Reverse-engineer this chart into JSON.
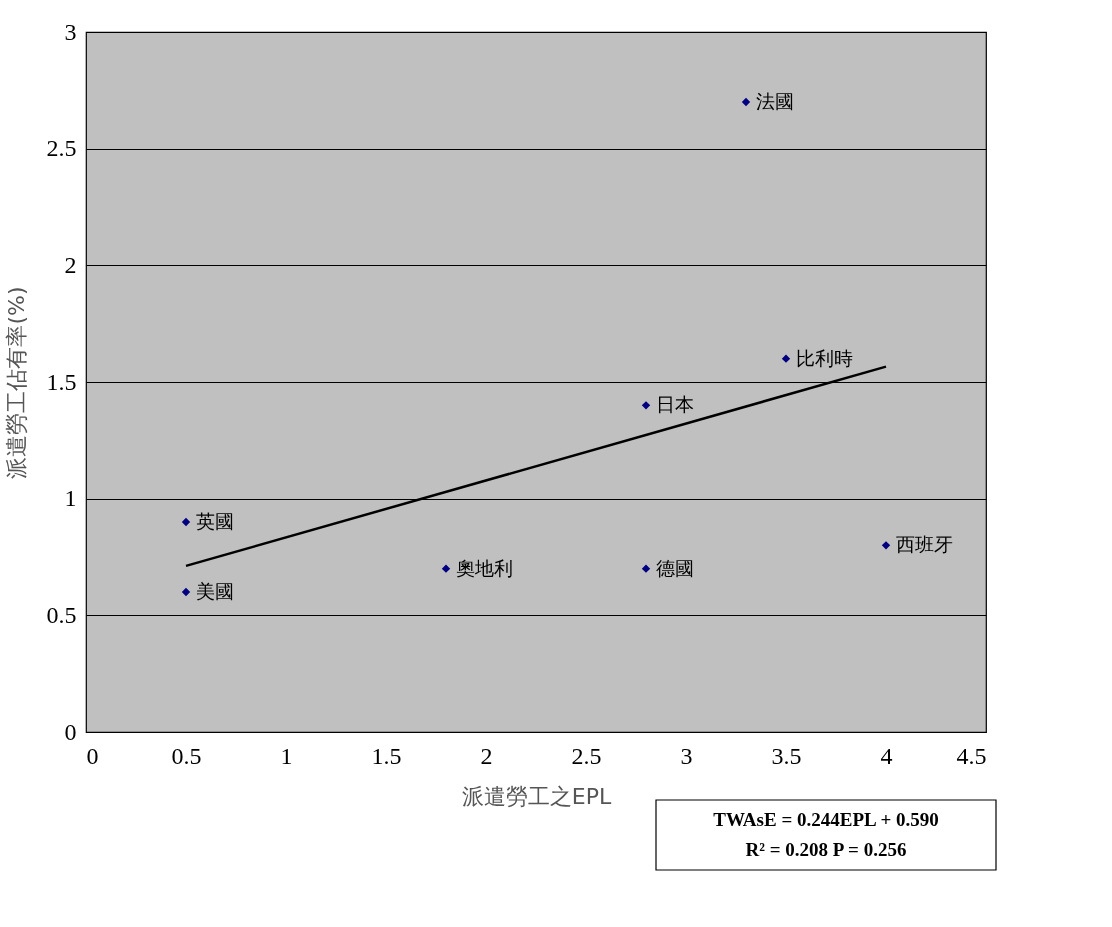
{
  "chart_data": {
    "type": "scatter",
    "xlabel": "派遣勞工之EPL",
    "ylabel": "派遣勞工佔有率(%)",
    "series": [
      {
        "color": "#000080",
        "marker": "diamond",
        "x": [
          0.5,
          0.5,
          1.8,
          2.8,
          2.8,
          3.3,
          3.5,
          4.0
        ],
        "values": [
          0.9,
          0.6,
          0.7,
          0.7,
          1.4,
          2.7,
          1.6,
          0.8
        ]
      },
      {
        "type": "line",
        "color": "#000000",
        "x": [
          0.5,
          4.0
        ],
        "values": [
          0.712,
          1.566
        ]
      }
    ],
    "xlim": [
      0,
      4.5
    ],
    "xticks": [
      0,
      0.5,
      1,
      1.5,
      2,
      2.5,
      3,
      3.5,
      4,
      4.5
    ],
    "ylim": [
      0,
      3
    ],
    "yticks": [
      0,
      0.5,
      1,
      1.5,
      2,
      2.5,
      3
    ],
    "grid": "y",
    "annotations": [
      {
        "text": "英國",
        "x": 0.5,
        "y": 0.9
      },
      {
        "text": "美國",
        "x": 0.5,
        "y": 0.6
      },
      {
        "text": "奧地利",
        "x": 1.8,
        "y": 0.7
      },
      {
        "text": "德國",
        "x": 2.8,
        "y": 0.7
      },
      {
        "text": "日本",
        "x": 2.8,
        "y": 1.4
      },
      {
        "text": "法國",
        "x": 3.3,
        "y": 2.7
      },
      {
        "text": "比利時",
        "x": 3.5,
        "y": 1.6
      },
      {
        "text": "西班牙",
        "x": 4.0,
        "y": 0.8
      },
      "TWAsE = 0.244EPL + 0.590",
      "R² =  0.208     P = 0.256"
    ]
  }
}
